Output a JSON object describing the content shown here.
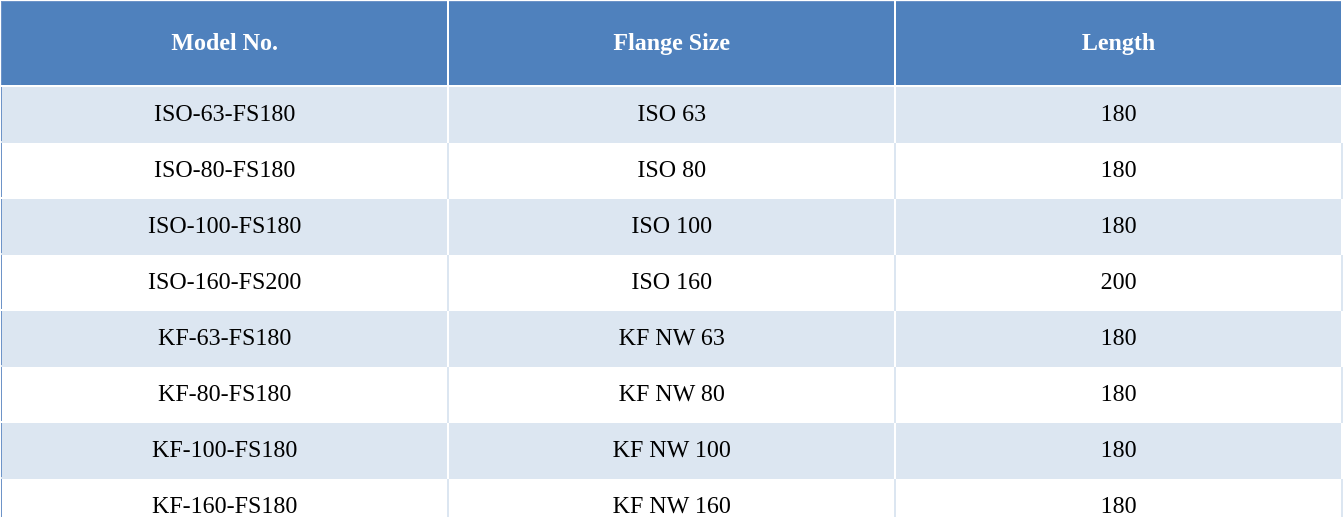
{
  "table": {
    "header": [
      "Model No.",
      "Flange Size",
      "Length"
    ],
    "rows": [
      [
        "ISO-63-FS180",
        "ISO 63",
        "180"
      ],
      [
        "ISO-80-FS180",
        "ISO 80",
        "180"
      ],
      [
        "ISO-100-FS180",
        "ISO 100",
        "180"
      ],
      [
        "ISO-160-FS200",
        "ISO 160",
        "200"
      ],
      [
        "KF-63-FS180",
        "KF NW 63",
        "180"
      ],
      [
        "KF-80-FS180",
        "KF NW 80",
        "180"
      ],
      [
        "KF-100-FS180",
        "KF NW 100",
        "180"
      ],
      [
        "KF-160-FS180",
        "KF NW 160",
        "180"
      ]
    ]
  }
}
